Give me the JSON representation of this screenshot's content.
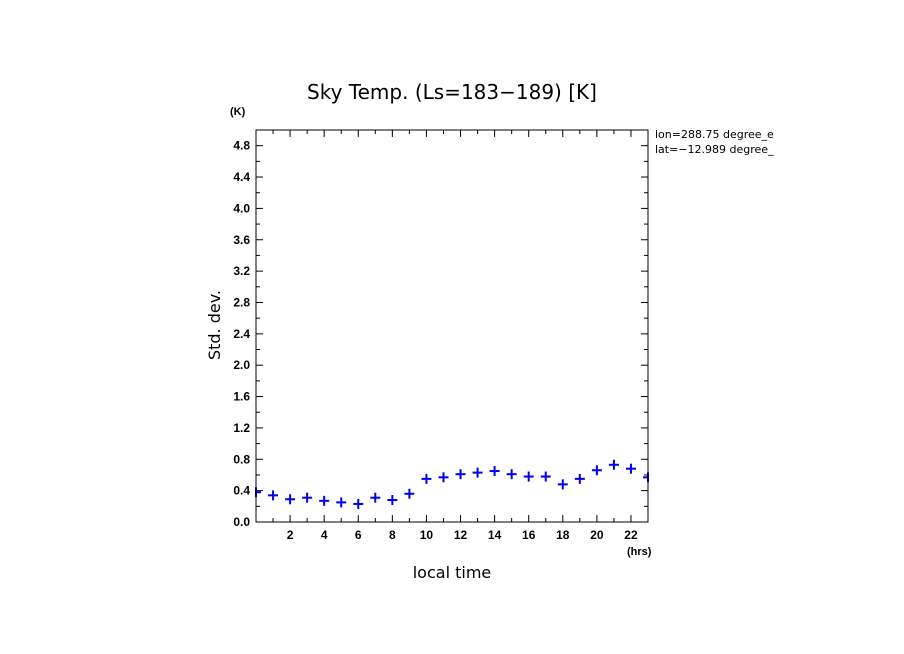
{
  "chart_data": {
    "type": "scatter",
    "title": "Sky Temp. (Ls=183−189) [K]",
    "xlabel": "local time",
    "ylabel": "Std. dev.",
    "x_unit": "(hrs)",
    "y_unit": "(K)",
    "xlim": [
      0,
      23
    ],
    "ylim": [
      0.0,
      5.0
    ],
    "x_ticks": [
      2,
      4,
      6,
      8,
      10,
      12,
      14,
      16,
      18,
      20,
      22
    ],
    "y_ticks": [
      0.0,
      0.4,
      0.8,
      1.2,
      1.6,
      2.0,
      2.4,
      2.8,
      3.2,
      3.6,
      4.0,
      4.4,
      4.8
    ],
    "y_tick_labels": [
      "0.0",
      "0.4",
      "0.8",
      "1.2",
      "1.6",
      "2.0",
      "2.4",
      "2.8",
      "3.2",
      "3.6",
      "4.0",
      "4.4",
      "4.8"
    ],
    "marker": "+",
    "marker_color": "#0000ee",
    "series": [
      {
        "name": "Std. dev.",
        "x": [
          0.0,
          1.0,
          2.0,
          3.0,
          4.0,
          5.0,
          6.0,
          7.0,
          8.0,
          9.0,
          10.0,
          11.0,
          12.0,
          13.0,
          14.0,
          15.0,
          16.0,
          17.0,
          18.0,
          19.0,
          20.0,
          21.0,
          22.0,
          23.0
        ],
        "values": [
          0.38,
          0.34,
          0.29,
          0.31,
          0.27,
          0.25,
          0.23,
          0.31,
          0.28,
          0.36,
          0.55,
          0.57,
          0.61,
          0.63,
          0.65,
          0.61,
          0.58,
          0.58,
          0.48,
          0.55,
          0.66,
          0.73,
          0.68,
          0.57
        ]
      }
    ],
    "annotations": [
      "lon=288.75 degree_e",
      "lat=−12.989 degree_"
    ]
  }
}
